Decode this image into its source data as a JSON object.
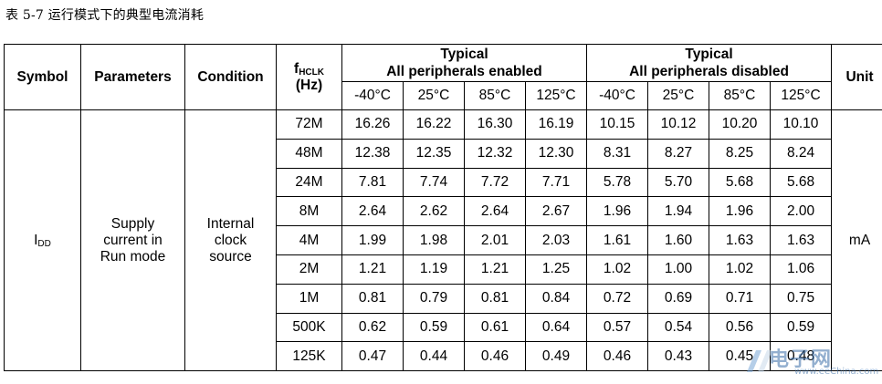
{
  "caption": "表 5-7 运行模式下的典型电流消耗",
  "header": {
    "symbol": "Symbol",
    "parameters": "Parameters",
    "condition": "Condition",
    "fclk_main": "f",
    "fclk_sub": "HCLK",
    "fclk_unit": "(Hz)",
    "group_enabled_line1": "Typical",
    "group_enabled_line2": "All peripherals enabled",
    "group_disabled_line1": "Typical",
    "group_disabled_line2": "All peripherals disabled",
    "unit": "Unit",
    "temps": [
      "-40°C",
      "25°C",
      "85°C",
      "125°C",
      "-40°C",
      "25°C",
      "85°C",
      "125°C"
    ]
  },
  "body": {
    "symbol_main": "I",
    "symbol_sub": "DD",
    "parameters": [
      "Supply",
      "current in",
      "Run mode"
    ],
    "condition": [
      "Internal",
      "clock",
      "source"
    ],
    "unit": "mA",
    "rows": [
      {
        "freq": "72M",
        "values": [
          "16.26",
          "16.22",
          "16.30",
          "16.19",
          "10.15",
          "10.12",
          "10.20",
          "10.10"
        ]
      },
      {
        "freq": "48M",
        "values": [
          "12.38",
          "12.35",
          "12.32",
          "12.30",
          "8.31",
          "8.27",
          "8.25",
          "8.24"
        ]
      },
      {
        "freq": "24M",
        "values": [
          "7.81",
          "7.74",
          "7.72",
          "7.71",
          "5.78",
          "5.70",
          "5.68",
          "5.68"
        ]
      },
      {
        "freq": "8M",
        "values": [
          "2.64",
          "2.62",
          "2.64",
          "2.67",
          "1.96",
          "1.94",
          "1.96",
          "2.00"
        ]
      },
      {
        "freq": "4M",
        "values": [
          "1.99",
          "1.98",
          "2.01",
          "2.03",
          "1.61",
          "1.60",
          "1.63",
          "1.63"
        ]
      },
      {
        "freq": "2M",
        "values": [
          "1.21",
          "1.19",
          "1.21",
          "1.25",
          "1.02",
          "1.00",
          "1.02",
          "1.06"
        ]
      },
      {
        "freq": "1M",
        "values": [
          "0.81",
          "0.79",
          "0.81",
          "0.84",
          "0.72",
          "0.69",
          "0.71",
          "0.75"
        ]
      },
      {
        "freq": "500K",
        "values": [
          "0.62",
          "0.59",
          "0.61",
          "0.64",
          "0.57",
          "0.54",
          "0.56",
          "0.59"
        ]
      },
      {
        "freq": "125K",
        "values": [
          "0.47",
          "0.44",
          "0.46",
          "0.49",
          "0.46",
          "0.43",
          "0.45",
          "0.48"
        ]
      }
    ]
  },
  "watermark": {
    "text": "电子网",
    "subtext": "www.eeChina.com"
  }
}
